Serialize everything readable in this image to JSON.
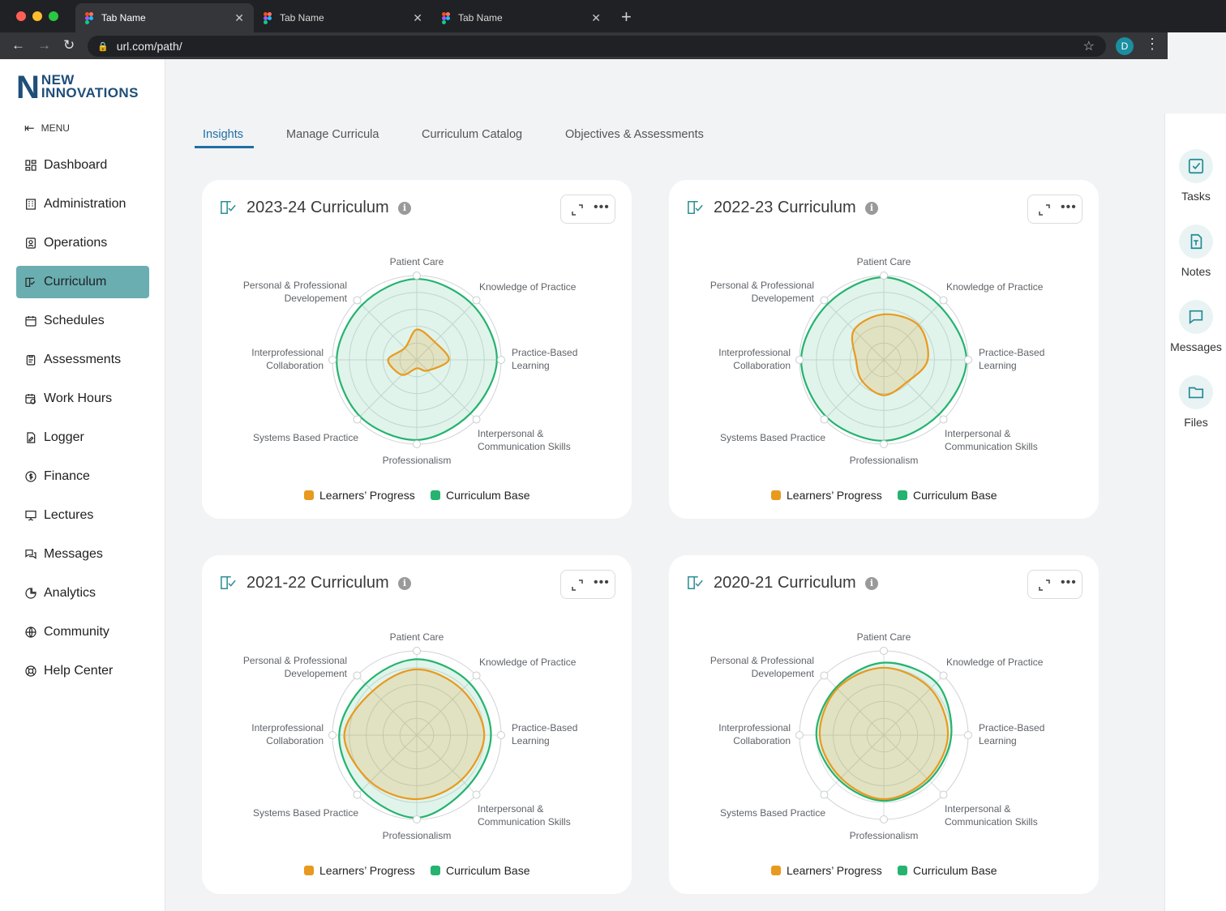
{
  "browser": {
    "tabs": [
      {
        "title": "Tab Name",
        "close": "✕"
      },
      {
        "title": "Tab Name",
        "close": "✕"
      },
      {
        "title": "Tab Name",
        "close": "✕"
      }
    ],
    "new_tab": "+",
    "url": "url.com/path/",
    "profile_initial": "D"
  },
  "sidebar": {
    "logo_mark": "N",
    "logo_line1": "NEW",
    "logo_line2": "INNOVATIONS",
    "menu_label": "MENU",
    "items": [
      {
        "label": "Dashboard",
        "icon": "dashboard-icon"
      },
      {
        "label": "Administration",
        "icon": "building-icon"
      },
      {
        "label": "Operations",
        "icon": "id-card-icon"
      },
      {
        "label": "Curriculum",
        "icon": "book-check-icon",
        "active": true
      },
      {
        "label": "Schedules",
        "icon": "calendar-icon"
      },
      {
        "label": "Assessments",
        "icon": "clipboard-icon"
      },
      {
        "label": "Work Hours",
        "icon": "calendar-clock-icon"
      },
      {
        "label": "Logger",
        "icon": "file-edit-icon"
      },
      {
        "label": "Finance",
        "icon": "dollar-icon"
      },
      {
        "label": "Lectures",
        "icon": "presentation-icon"
      },
      {
        "label": "Messages",
        "icon": "chat-icon"
      },
      {
        "label": "Analytics",
        "icon": "pie-chart-icon"
      },
      {
        "label": "Community",
        "icon": "globe-icon"
      },
      {
        "label": "Help Center",
        "icon": "lifebuoy-icon"
      }
    ]
  },
  "main_tabs": [
    {
      "label": "Insights",
      "active": true
    },
    {
      "label": "Manage Curricula"
    },
    {
      "label": "Curriculum Catalog"
    },
    {
      "label": "Objectives & Assessments"
    }
  ],
  "axes": [
    "Patient Care",
    "Knowledge of Practice",
    "Practice-Based Learning",
    "Interpersonal & Communication Skills",
    "Professionalism",
    "Systems Based Practice",
    "Interprofessional Collaboration",
    "Personal & Professional Developement"
  ],
  "legend": {
    "progress": "Learners’ Progress",
    "base": "Curriculum Base"
  },
  "colors": {
    "progress": "#e89a1e",
    "base": "#25b36f",
    "accent": "#1f6fa3",
    "active_nav": "#6aaeb1"
  },
  "cards": [
    {
      "title": "2023-24 Curriculum",
      "base": [
        0.96,
        0.93,
        0.95,
        0.9,
        0.95,
        0.95,
        0.95,
        0.92
      ],
      "progress": [
        0.36,
        0.3,
        0.38,
        0.18,
        0.1,
        0.25,
        0.34,
        0.2
      ]
    },
    {
      "title": "2022-23 Curriculum",
      "base": [
        0.98,
        0.92,
        0.98,
        0.92,
        0.96,
        0.96,
        0.98,
        0.94
      ],
      "progress": [
        0.54,
        0.58,
        0.52,
        0.38,
        0.42,
        0.36,
        0.33,
        0.5
      ]
    },
    {
      "title": "2021-22 Curriculum",
      "base": [
        0.9,
        0.88,
        0.88,
        0.86,
        0.98,
        0.92,
        0.92,
        0.86
      ],
      "progress": [
        0.78,
        0.76,
        0.8,
        0.75,
        0.76,
        0.78,
        0.86,
        0.74
      ]
    },
    {
      "title": "2020-21 Curriculum",
      "base": [
        0.86,
        0.88,
        0.8,
        0.76,
        0.78,
        0.75,
        0.8,
        0.8
      ],
      "progress": [
        0.8,
        0.78,
        0.76,
        0.73,
        0.76,
        0.72,
        0.76,
        0.78
      ]
    }
  ],
  "rail": [
    {
      "label": "Tasks",
      "icon": "task-check-icon"
    },
    {
      "label": "Notes",
      "icon": "note-icon"
    },
    {
      "label": "Messages",
      "icon": "message-icon"
    },
    {
      "label": "Files",
      "icon": "folder-icon"
    }
  ]
}
